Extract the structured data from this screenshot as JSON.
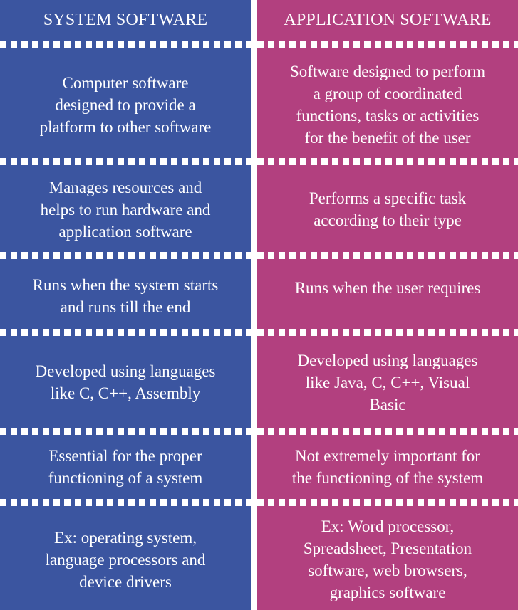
{
  "columns": [
    {
      "header": "SYSTEM SOFTWARE",
      "rows": [
        "Computer software\ndesigned to provide a\nplatform to other software",
        "Manages resources and\nhelps to run hardware and\napplication software",
        "Runs when the system starts\nand runs till the end",
        "Developed using languages\nlike C, C++, Assembly",
        "Essential for the proper\nfunctioning of a system",
        "Ex: operating system,\nlanguage processors and\ndevice drivers"
      ]
    },
    {
      "header": "APPLICATION SOFTWARE",
      "rows": [
        "Software designed to perform\na group of coordinated\nfunctions, tasks or activities\nfor the benefit of the user",
        "Performs a specific task\naccording to their type",
        "Runs when the user requires",
        "Developed using languages\nlike Java, C, C++, Visual\nBasic",
        "Not extremely important for\nthe functioning of the system",
        "Ex: Word processor,\nSpreadsheet, Presentation\nsoftware, web browsers,\ngraphics software"
      ]
    }
  ],
  "colors": {
    "system": "#3b55a0",
    "application": "#b2407f",
    "separator": "#ffffff"
  }
}
